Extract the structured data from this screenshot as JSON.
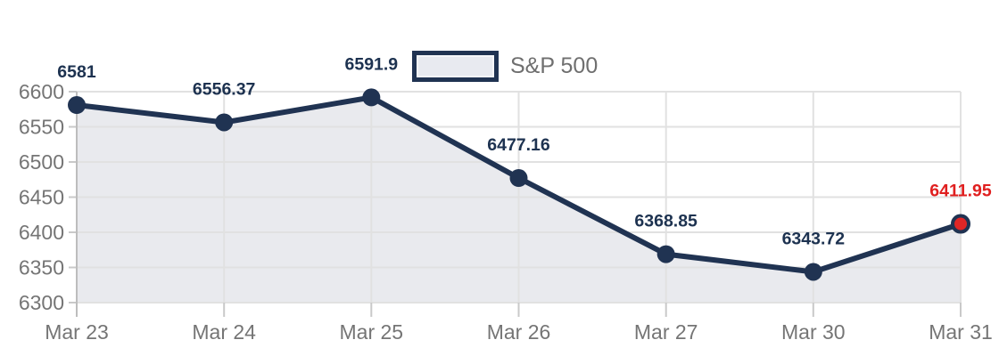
{
  "chart_data": {
    "type": "area",
    "title": "",
    "legend": "S&P 500",
    "legend_position": "top-center",
    "x": [
      "Mar 23",
      "Mar 24",
      "Mar 25",
      "Mar 26",
      "Mar 27",
      "Mar 30",
      "Mar 31"
    ],
    "series": [
      {
        "name": "S&P 500",
        "values": [
          6581,
          6556.37,
          6591.9,
          6477.16,
          6368.85,
          6343.72,
          6411.95
        ],
        "point_labels": [
          "6581",
          "6556.37",
          "6591.9",
          "6477.16",
          "6368.85",
          "6343.72",
          "6411.95"
        ]
      }
    ],
    "highlight_index": 6,
    "ylim": [
      6300,
      6600
    ],
    "y_ticks": [
      6300,
      6350,
      6400,
      6450,
      6500,
      6550,
      6600
    ],
    "y_tick_labels": [
      "6300",
      "6350",
      "6400",
      "6450",
      "6500",
      "6550",
      "6600"
    ],
    "xlabel": "",
    "ylabel": "",
    "grid": "on",
    "colors": {
      "line": "#203352",
      "point": "#203352",
      "area_fill": "#e9eaee",
      "highlight_point": "#e02626",
      "highlight_label": "#e02020",
      "data_label": "#1d3250",
      "grid_line": "#e1e1e1",
      "axis_line": "#bdbdbd",
      "tick_mark": "#c9c9c9",
      "axis_text": "#757575",
      "legend_text": "#6f6f6f"
    }
  }
}
